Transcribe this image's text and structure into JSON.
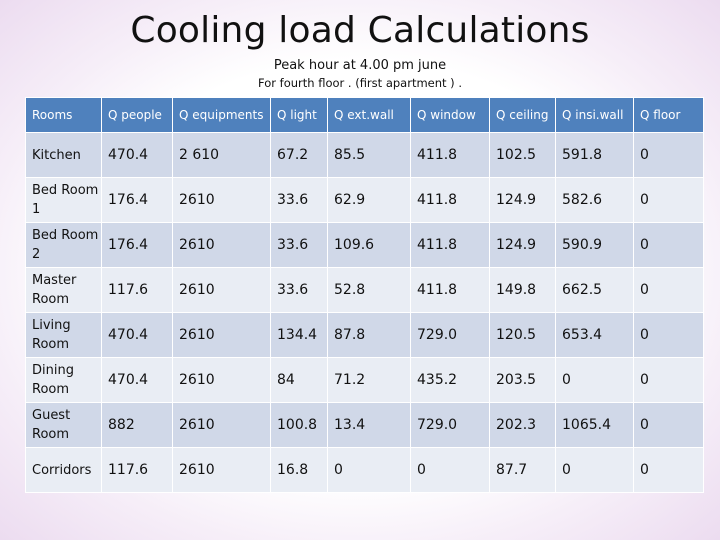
{
  "title": "Cooling load Calculations",
  "subtitle": "Peak hour at 4.00 pm june",
  "subtitle2": "For fourth floor . (first apartment ) .",
  "table": {
    "headers": [
      "Rooms",
      "Q people",
      "Q equipments",
      "Q light",
      "Q ext.wall",
      "Q window",
      "Q ceiling",
      "Q insi.wall",
      "Q floor"
    ],
    "rows": [
      [
        "Kitchen",
        "470.4",
        "2 610",
        "67.2",
        "85.5",
        "411.8",
        "102.5",
        "591.8",
        "0"
      ],
      [
        "Bed Room 1",
        "176.4",
        "2610",
        "33.6",
        "62.9",
        "411.8",
        "124.9",
        "582.6",
        "0"
      ],
      [
        "Bed Room 2",
        "176.4",
        "2610",
        "33.6",
        "109.6",
        "411.8",
        "124.9",
        "590.9",
        "0"
      ],
      [
        "Master Room",
        "117.6",
        "2610",
        "33.6",
        "52.8",
        "411.8",
        "149.8",
        "662.5",
        "0"
      ],
      [
        "Living Room",
        "470.4",
        "2610",
        "134.4",
        "87.8",
        "729.0",
        "120.5",
        "653.4",
        "0"
      ],
      [
        "Dining Room",
        "470.4",
        "2610",
        "84",
        "71.2",
        "435.2",
        "203.5",
        "0",
        "0"
      ],
      [
        "Guest Room",
        "882",
        "2610",
        "100.8",
        "13.4",
        "729.0",
        "202.3",
        "1065.4",
        "0"
      ],
      [
        "Corridors",
        "117.6",
        "2610",
        "16.8",
        "0",
        "0",
        "87.7",
        "0",
        "0"
      ]
    ]
  },
  "colors": {
    "header_bg": "#4f81bd",
    "row_bg": "#d0d8e8",
    "row_alt_bg": "#e9edf4"
  }
}
